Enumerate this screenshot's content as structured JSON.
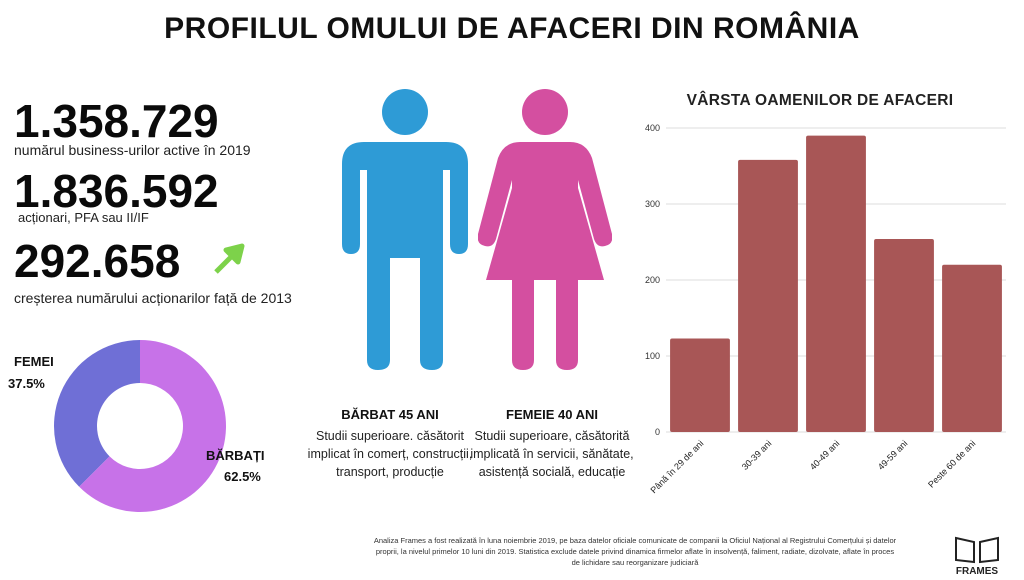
{
  "title": "PROFILUL OMULUI DE AFACERI DIN ROMÂNIA",
  "stats": [
    {
      "value": "1.358.729",
      "caption": "numărul business-urilor active în 2019"
    },
    {
      "value": "1.836.592",
      "caption": "acționari, PFA sau II/IF"
    },
    {
      "value": "292.658",
      "caption": "creșterea numărului acționarilor față de 2013"
    }
  ],
  "colors": {
    "men": "#2e9bd6",
    "women": "#d44fa0",
    "bars": "#a85656",
    "donut_men": "#c772e8",
    "donut_women": "#6f6fd6",
    "arrow": "#7dd24a"
  },
  "gender_split": {
    "women": {
      "label": "FEMEI",
      "percent_label": "37.5%"
    },
    "men": {
      "label": "BĂRBAȚI",
      "percent_label": "62.5%"
    }
  },
  "profiles": {
    "man": {
      "heading": "BĂRBAT 45 ANI",
      "lines": [
        "Studii superioare. căsătorit",
        "implicat în comerț, construcții,",
        "transport, producție"
      ],
      "icon": "man-icon"
    },
    "woman": {
      "heading": "FEMEIE 40 ANI",
      "lines": [
        "Studii superioare, căsătorită",
        "implicată în servicii, sănătate,",
        "asistență socială, educație"
      ],
      "icon": "woman-icon"
    }
  },
  "chart_data": [
    {
      "type": "pie",
      "categories": [
        "FEMEI",
        "BĂRBAȚI"
      ],
      "values": [
        37.5,
        62.5
      ],
      "title": ""
    },
    {
      "type": "bar",
      "title": "VÂRSTA OAMENILOR DE AFACERI",
      "categories": [
        "Până în 29 de ani",
        "30-39 ani",
        "40-49 ani",
        "49-59 ani",
        "Peste 60 de ani"
      ],
      "values": [
        123,
        358,
        390,
        254,
        220
      ],
      "ylim": [
        0,
        400
      ],
      "yticks": [
        0,
        100,
        200,
        300,
        400
      ],
      "grid": true,
      "xlabel": "",
      "ylabel": ""
    }
  ],
  "footnote": [
    "Analiza Frames a fost realizată în luna noiembrie 2019, pe baza datelor oficiale comunicate de companii la Oficiul Național al Registrului Comerțului și datelor",
    "proprii, la nivelul primelor 10 luni din 2019. Statistica exclude datele privind dinamica firmelor aflate în insolvență, faliment, radiate, dizolvate, aflate în proces",
    "de lichidare sau reorganizare judiciară"
  ],
  "logo_text": "FRAMES"
}
